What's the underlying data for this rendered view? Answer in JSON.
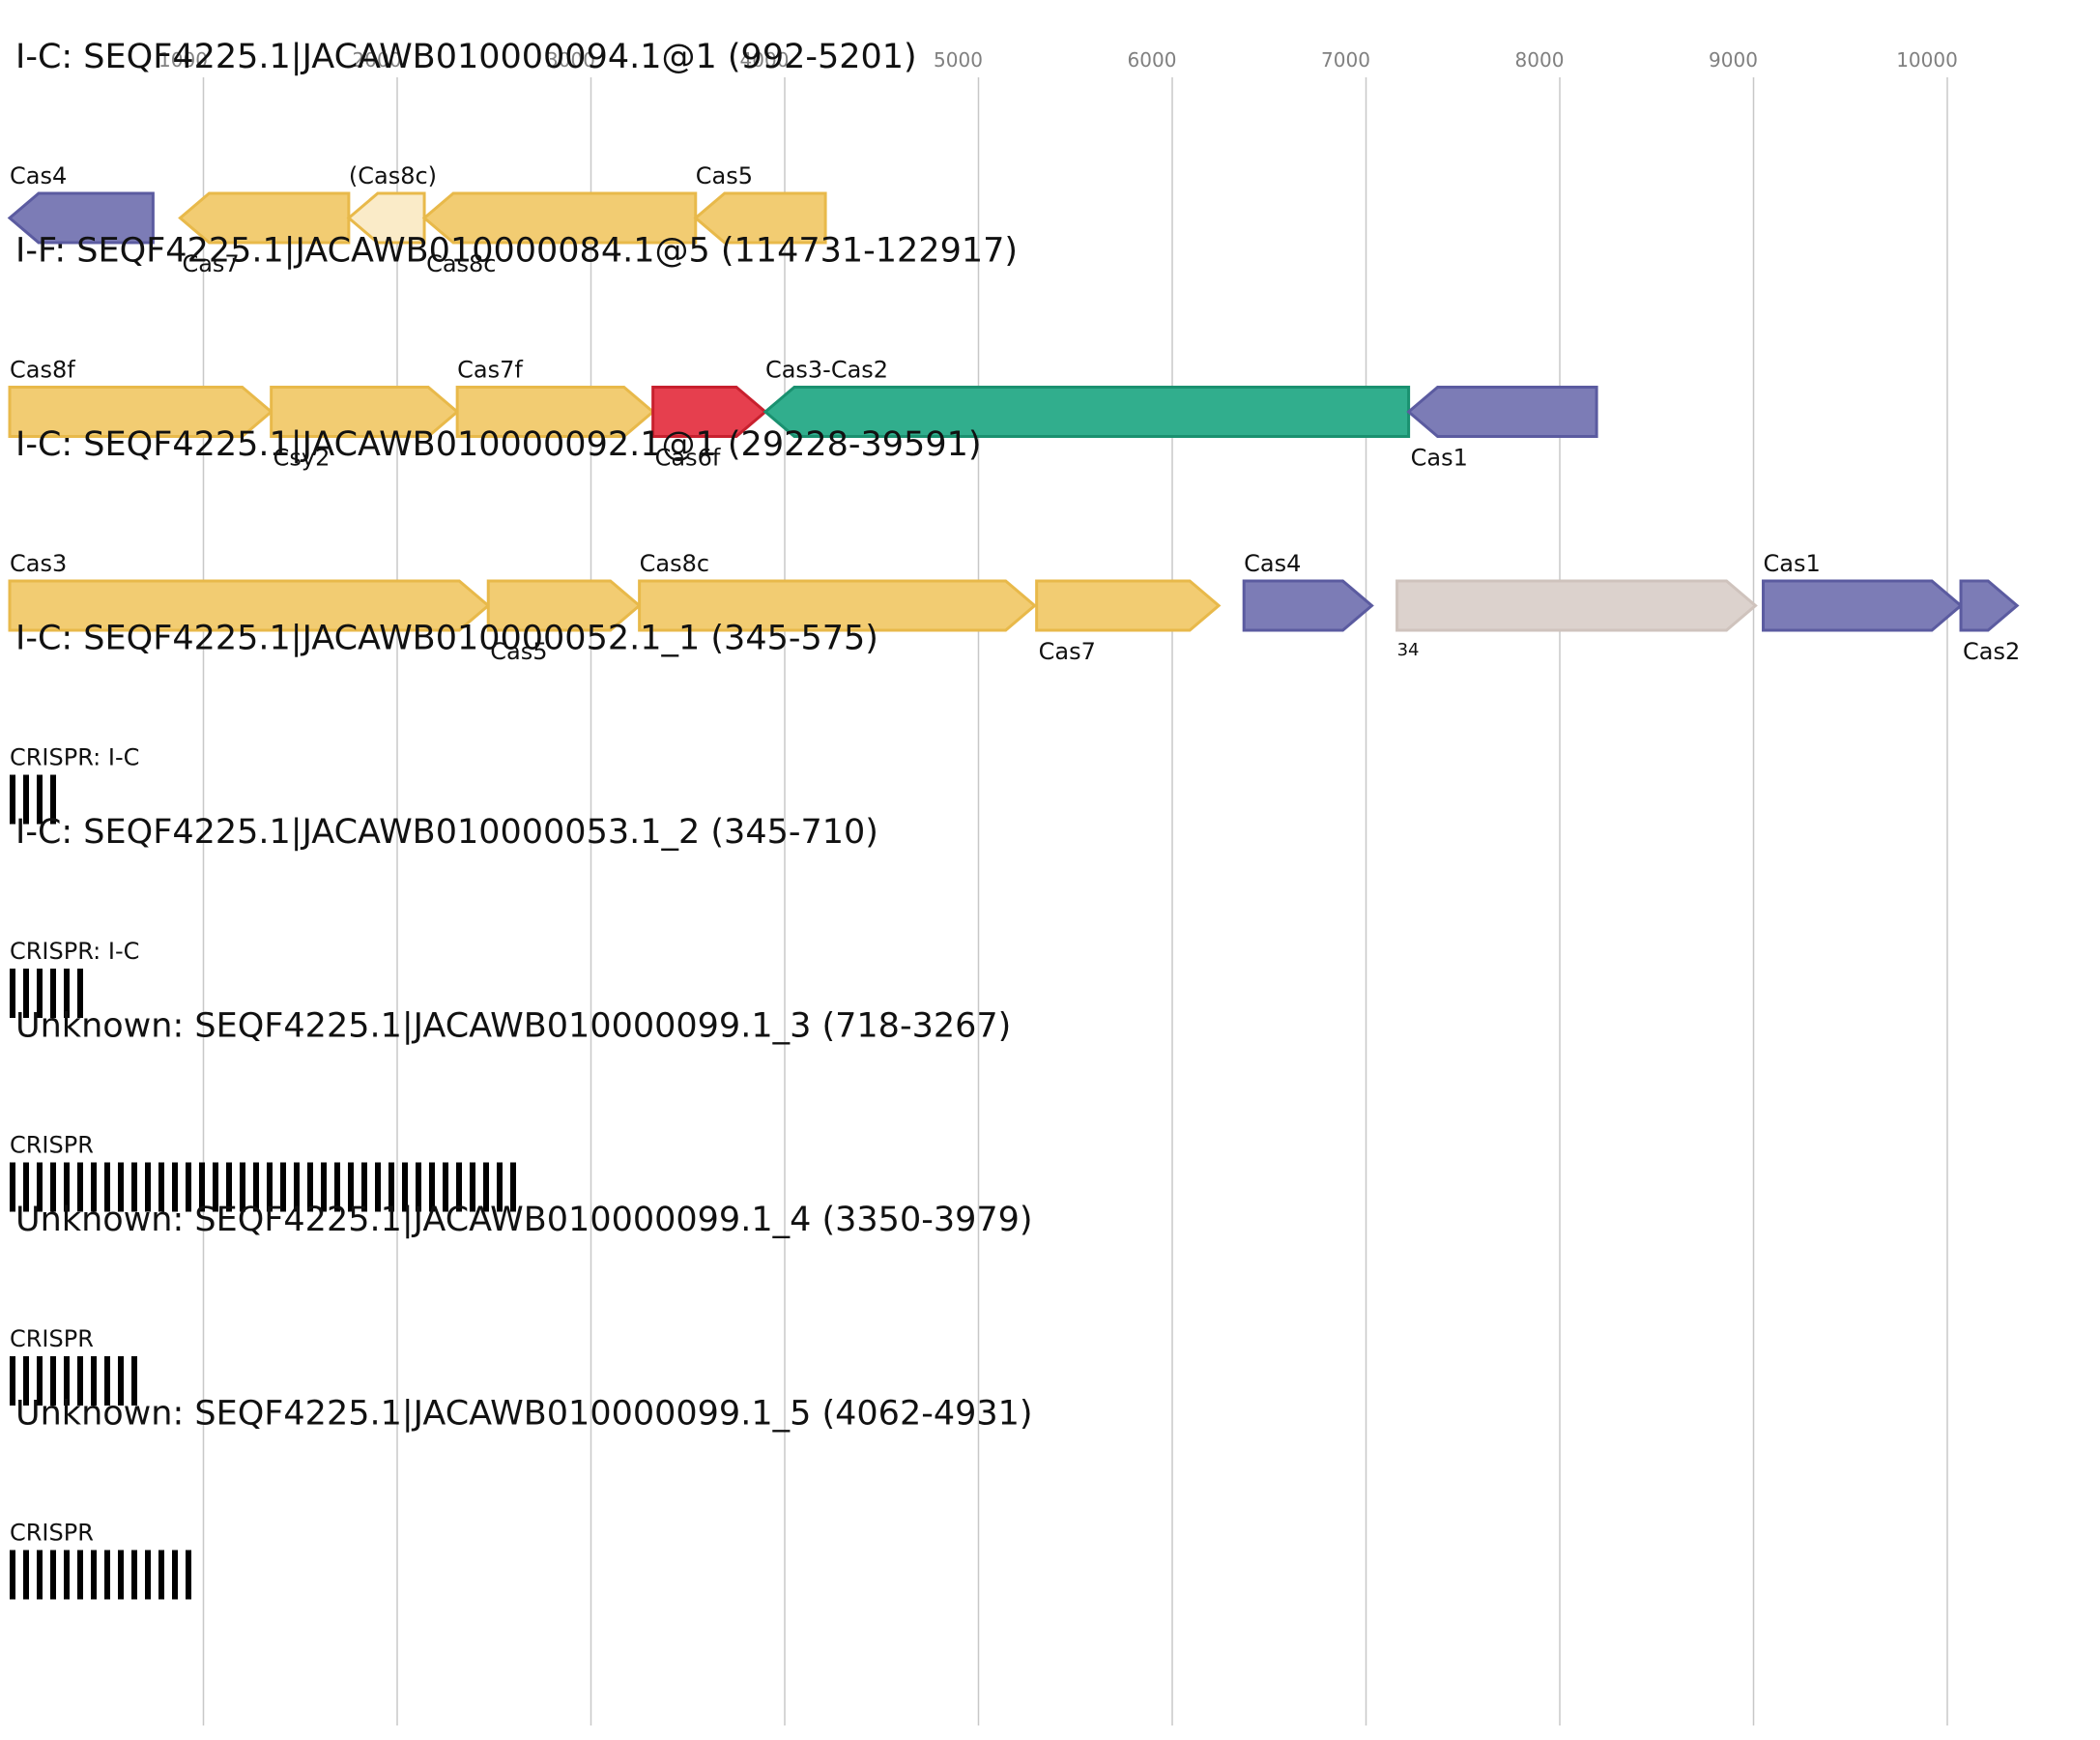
{
  "colors": {
    "gene_yellow": "#f2cc72",
    "gene_yellow_stroke": "#e8b94a",
    "gene_pale": "#faebc8",
    "gene_purple": "#7c7cb6",
    "gene_purple_stroke": "#5b5ba0",
    "gene_red": "#e63f4e",
    "gene_red_stroke": "#c8202e",
    "gene_green": "#31ae8d",
    "gene_green_stroke": "#1a9170",
    "gene_gray": "#dcd2cd",
    "gene_gray_stroke": "#cfc3bd",
    "grid": "#c8c8c8",
    "axis_text": "#808080",
    "text": "#111111",
    "crispr_bar": "#000000"
  },
  "axis": {
    "ticks": [
      1000,
      2000,
      3000,
      4000,
      5000,
      6000,
      7000,
      8000,
      9000,
      10000
    ]
  },
  "tracks": [
    {
      "title": "I-C: SEQF4225.1|JACAWB010000094.1@1 (992-5201)",
      "genes": [
        {
          "start": 0,
          "end": 740,
          "strand": "-",
          "label": "Cas4",
          "label_pos": "above",
          "color": "purple"
        },
        {
          "start": 880,
          "end": 1750,
          "strand": "-",
          "label": "Cas7",
          "label_pos": "below",
          "color": "yellow"
        },
        {
          "start": 1750,
          "end": 2140,
          "strand": "-",
          "label": "(Cas8c)",
          "label_pos": "above",
          "color": "pale"
        },
        {
          "start": 2140,
          "end": 3540,
          "strand": "-",
          "label": "Cas8c",
          "label_pos": "below",
          "color": "yellow"
        },
        {
          "start": 3540,
          "end": 4210,
          "strand": "-",
          "label": "Cas5",
          "label_pos": "above",
          "color": "yellow"
        }
      ]
    },
    {
      "title": "I-F: SEQF4225.1|JACAWB010000084.1@5 (114731-122917)",
      "genes": [
        {
          "start": 0,
          "end": 1350,
          "strand": "+",
          "label": "Cas8f",
          "label_pos": "above",
          "color": "yellow"
        },
        {
          "start": 1350,
          "end": 2310,
          "strand": "+",
          "label": "Csy2",
          "label_pos": "below",
          "color": "yellow"
        },
        {
          "start": 2310,
          "end": 3320,
          "strand": "+",
          "label": "Cas7f",
          "label_pos": "above",
          "color": "yellow"
        },
        {
          "start": 3320,
          "end": 3900,
          "strand": "+",
          "label": "Cas6f",
          "label_pos": "below",
          "color": "red"
        },
        {
          "start": 3900,
          "end": 7220,
          "strand": "-",
          "label": "Cas3-Cas2",
          "label_pos": "above",
          "color": "green"
        },
        {
          "start": 7220,
          "end": 8190,
          "strand": "-",
          "label": "Cas1",
          "label_pos": "below",
          "color": "purple"
        }
      ]
    },
    {
      "title": "I-C: SEQF4225.1|JACAWB010000092.1@1 (29228-39591)",
      "genes": [
        {
          "start": 0,
          "end": 2470,
          "strand": "+",
          "label": "Cas3",
          "label_pos": "above",
          "color": "yellow"
        },
        {
          "start": 2470,
          "end": 3250,
          "strand": "+",
          "label": "Cas5",
          "label_pos": "below",
          "color": "yellow"
        },
        {
          "start": 3250,
          "end": 5290,
          "strand": "+",
          "label": "Cas8c",
          "label_pos": "above",
          "color": "yellow"
        },
        {
          "start": 5300,
          "end": 6240,
          "strand": "+",
          "label": "Cas7",
          "label_pos": "below",
          "color": "yellow"
        },
        {
          "start": 6370,
          "end": 7030,
          "strand": "+",
          "label": "Cas4",
          "label_pos": "above",
          "color": "purple"
        },
        {
          "start": 7160,
          "end": 9010,
          "strand": "+",
          "label": "34",
          "label_pos": "below_small",
          "color": "gray"
        },
        {
          "start": 9050,
          "end": 10070,
          "strand": "+",
          "label": "Cas1",
          "label_pos": "above",
          "color": "purple"
        },
        {
          "start": 10070,
          "end": 10360,
          "strand": "+",
          "label": "Cas2",
          "label_pos": "below",
          "color": "purple"
        }
      ]
    },
    {
      "title": "I-C: SEQF4225.1|JACAWB010000052.1_1 (345-575)",
      "crispr": {
        "label": "CRISPR: I-C",
        "bars": 4
      }
    },
    {
      "title": "I-C: SEQF4225.1|JACAWB010000053.1_2 (345-710)",
      "crispr": {
        "label": "CRISPR: I-C",
        "bars": 6
      }
    },
    {
      "title": "Unknown: SEQF4225.1|JACAWB010000099.1_3 (718-3267)",
      "crispr": {
        "label": "CRISPR",
        "bars": 38
      }
    },
    {
      "title": "Unknown: SEQF4225.1|JACAWB010000099.1_4 (3350-3979)",
      "crispr": {
        "label": "CRISPR",
        "bars": 10
      }
    },
    {
      "title": "Unknown: SEQF4225.1|JACAWB010000099.1_5 (4062-4931)",
      "crispr": {
        "label": "CRISPR",
        "bars": 14
      }
    }
  ]
}
